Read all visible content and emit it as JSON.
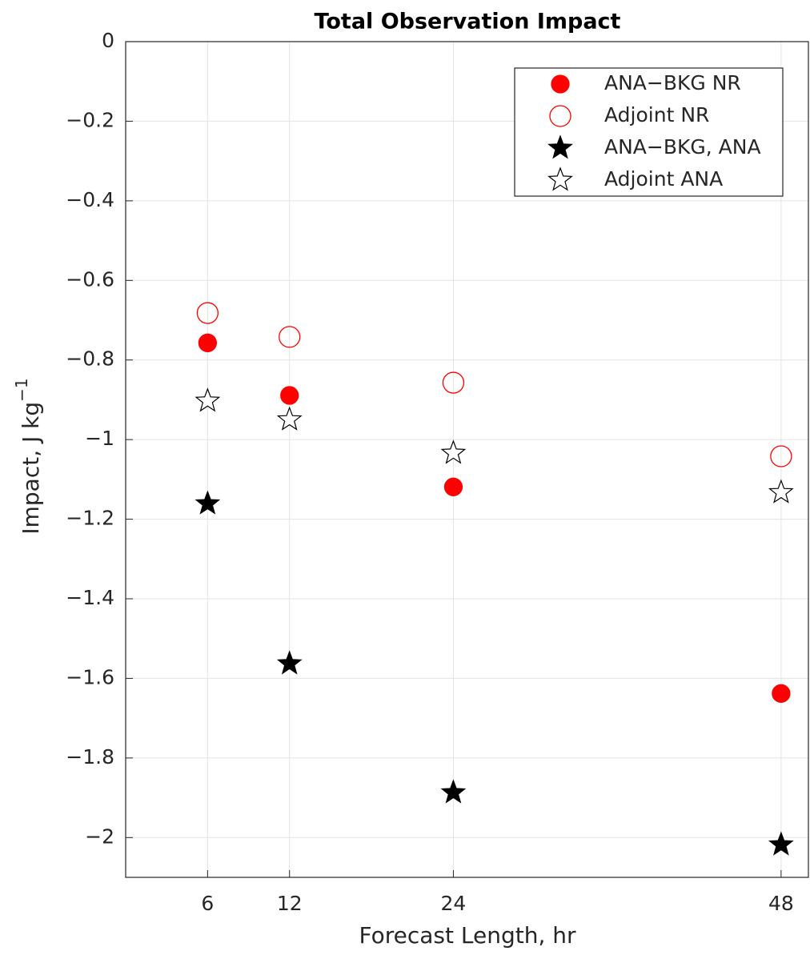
{
  "chart_data": {
    "type": "scatter",
    "title": "Total Observation Impact",
    "xlabel": "Forecast Length, hr",
    "ylabel": "Impact, J kg",
    "ylabel_superscript": "−1",
    "x": [
      6,
      12,
      24,
      48
    ],
    "series": [
      {
        "name": "ANA−BKG NR",
        "color": "#ff0000",
        "marker": "circle",
        "filled": true,
        "values": [
          -0.757,
          -0.889,
          -1.119,
          -1.638
        ]
      },
      {
        "name": "Adjoint NR",
        "color": "#ff0000",
        "marker": "circle",
        "filled": false,
        "values": [
          -0.682,
          -0.742,
          -0.857,
          -1.042
        ]
      },
      {
        "name": "ANA−BKG, ANA",
        "color": "#000000",
        "marker": "star",
        "filled": true,
        "values": [
          -1.161,
          -1.563,
          -1.887,
          -2.018
        ]
      },
      {
        "name": "Adjoint ANA",
        "color": "#000000",
        "marker": "star",
        "filled": false,
        "values": [
          -0.903,
          -0.95,
          -1.034,
          -1.133
        ]
      }
    ],
    "xlim": [
      0,
      50
    ],
    "xticks": [
      6,
      12,
      24,
      48
    ],
    "ylim": [
      -2.1,
      0
    ],
    "yticks": [
      0,
      {
        "value": -0.2,
        "label": "−0.2"
      },
      {
        "value": -0.4,
        "label": "−0.4"
      },
      {
        "value": -0.6,
        "label": "−0.6"
      },
      {
        "value": -0.8,
        "label": "−0.8"
      },
      {
        "value": -1,
        "label": "−1"
      },
      {
        "value": -1.2,
        "label": "−1.2"
      },
      {
        "value": -1.4,
        "label": "−1.4"
      },
      {
        "value": -1.6,
        "label": "−1.6"
      },
      {
        "value": -1.8,
        "label": "−1.8"
      },
      {
        "value": -2,
        "label": "−2"
      }
    ],
    "grid": true,
    "legend": "upper right"
  }
}
